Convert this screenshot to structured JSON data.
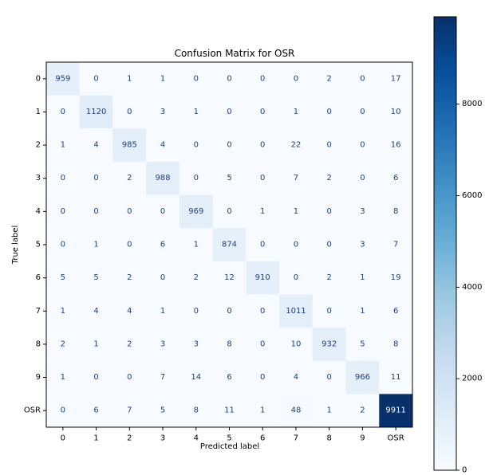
{
  "chart_data": {
    "type": "heatmap",
    "title": "Confusion Matrix for OSR",
    "xlabel": "Predicted label",
    "ylabel": "True label",
    "x_categories": [
      "0",
      "1",
      "2",
      "3",
      "4",
      "5",
      "6",
      "7",
      "8",
      "9",
      "OSR"
    ],
    "y_categories": [
      "0",
      "1",
      "2",
      "3",
      "4",
      "5",
      "6",
      "7",
      "8",
      "9",
      "OSR"
    ],
    "matrix": [
      [
        959,
        0,
        1,
        1,
        0,
        0,
        0,
        0,
        2,
        0,
        17
      ],
      [
        0,
        1120,
        0,
        3,
        1,
        0,
        0,
        1,
        0,
        0,
        10
      ],
      [
        1,
        4,
        985,
        4,
        0,
        0,
        0,
        22,
        0,
        0,
        16
      ],
      [
        0,
        0,
        2,
        988,
        0,
        5,
        0,
        7,
        2,
        0,
        6
      ],
      [
        0,
        0,
        0,
        0,
        969,
        0,
        1,
        1,
        0,
        3,
        8
      ],
      [
        0,
        1,
        0,
        6,
        1,
        874,
        0,
        0,
        0,
        3,
        7
      ],
      [
        5,
        5,
        2,
        0,
        2,
        12,
        910,
        0,
        2,
        1,
        19
      ],
      [
        1,
        4,
        4,
        1,
        0,
        0,
        0,
        1011,
        0,
        1,
        6
      ],
      [
        2,
        1,
        2,
        3,
        3,
        8,
        0,
        10,
        932,
        5,
        8
      ],
      [
        1,
        0,
        0,
        7,
        14,
        6,
        0,
        4,
        0,
        966,
        11
      ],
      [
        0,
        6,
        7,
        5,
        8,
        11,
        1,
        48,
        1,
        2,
        9911
      ]
    ],
    "colormap": "Blues",
    "vmin": 0,
    "vmax": 9911,
    "colorbar_ticks": [
      0,
      2000,
      4000,
      6000,
      8000
    ],
    "colorbar_tick_labels": [
      "0",
      "2000",
      "4000",
      "6000",
      "8000"
    ],
    "colors": {
      "low": "#f7fbff",
      "high": "#08306b",
      "text_dark": "#1f3d7a",
      "text_light": "#ffffff"
    }
  }
}
